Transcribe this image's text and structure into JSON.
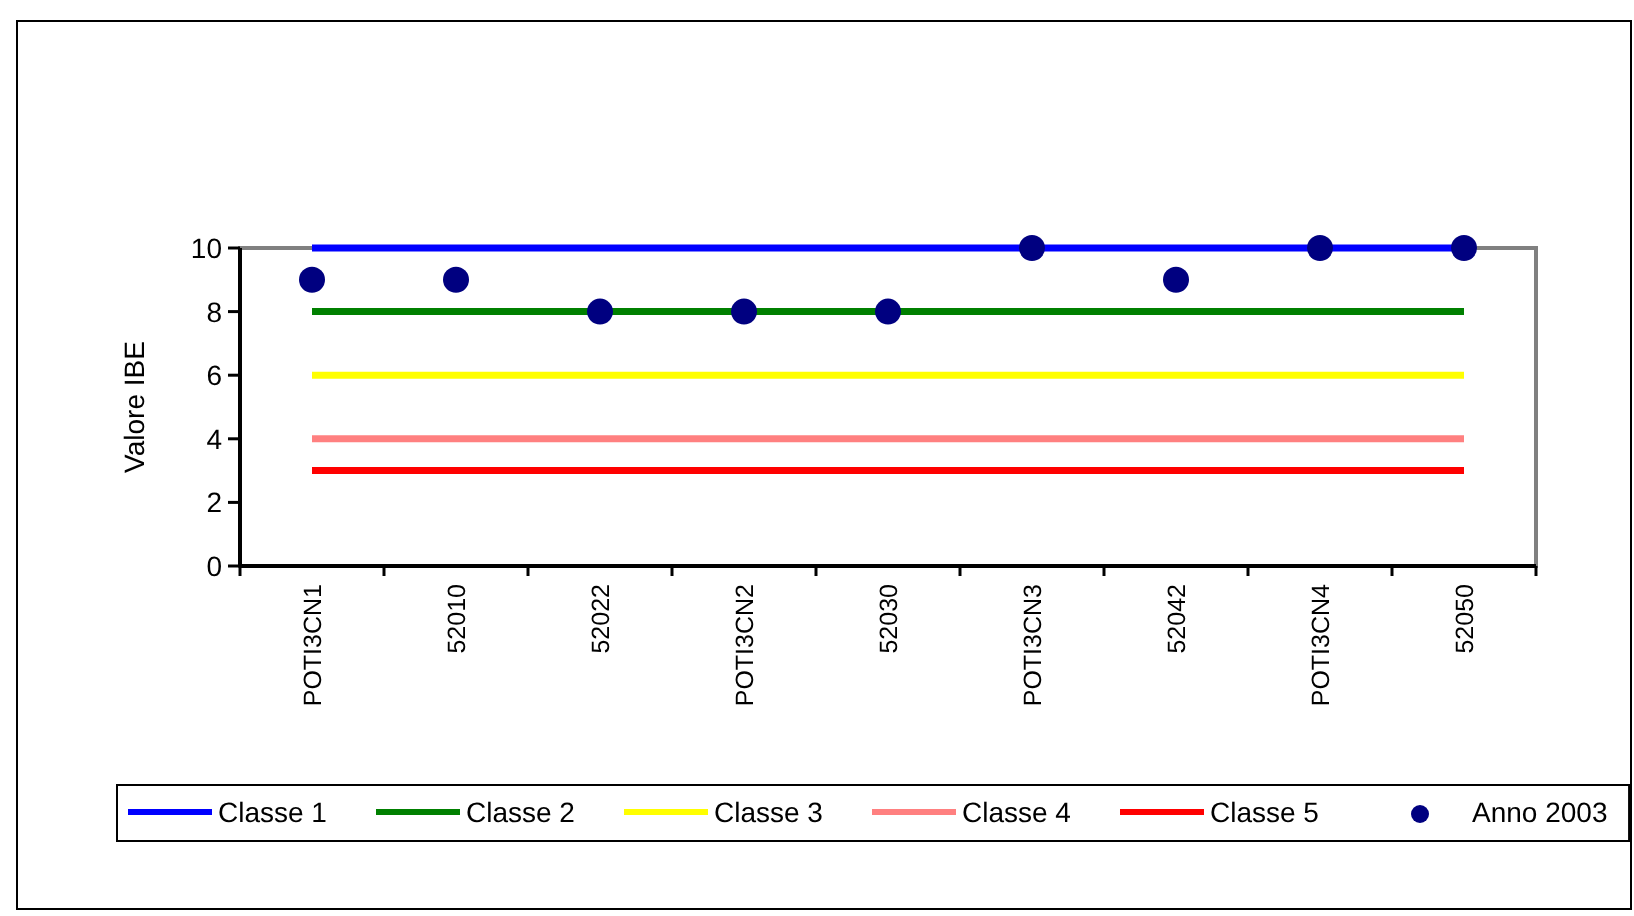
{
  "chart_data": {
    "type": "line",
    "ylabel": "Valore IBE",
    "categories": [
      "POTI3CN1",
      "52010",
      "52022",
      "POTI3CN2",
      "52030",
      "POTI3CN3",
      "52042",
      "POTI3CN4",
      "52050"
    ],
    "series": [
      {
        "name": "Classe 1",
        "color": "#0000ff",
        "values": [
          10,
          10,
          10,
          10,
          10,
          10,
          10,
          10,
          10
        ]
      },
      {
        "name": "Classe 2",
        "color": "#008000",
        "values": [
          8,
          8,
          8,
          8,
          8,
          8,
          8,
          8,
          8
        ]
      },
      {
        "name": "Classe 3",
        "color": "#ffff00",
        "values": [
          6,
          6,
          6,
          6,
          6,
          6,
          6,
          6,
          6
        ]
      },
      {
        "name": "Classe 4",
        "color": "#ff8080",
        "values": [
          4,
          4,
          4,
          4,
          4,
          4,
          4,
          4,
          4
        ]
      },
      {
        "name": "Classe 5",
        "color": "#ff0000",
        "values": [
          3,
          3,
          3,
          3,
          3,
          3,
          3,
          3,
          3
        ]
      },
      {
        "name": "Anno 2003",
        "type": "scatter",
        "marker": "circle",
        "color": "#000080",
        "values": [
          9,
          9,
          8,
          8,
          8,
          10,
          9,
          10,
          10
        ]
      }
    ],
    "ylim": [
      0,
      10
    ],
    "yticks": [
      0,
      2,
      4,
      6,
      8,
      10
    ],
    "grid": false,
    "legend": "bottom"
  }
}
